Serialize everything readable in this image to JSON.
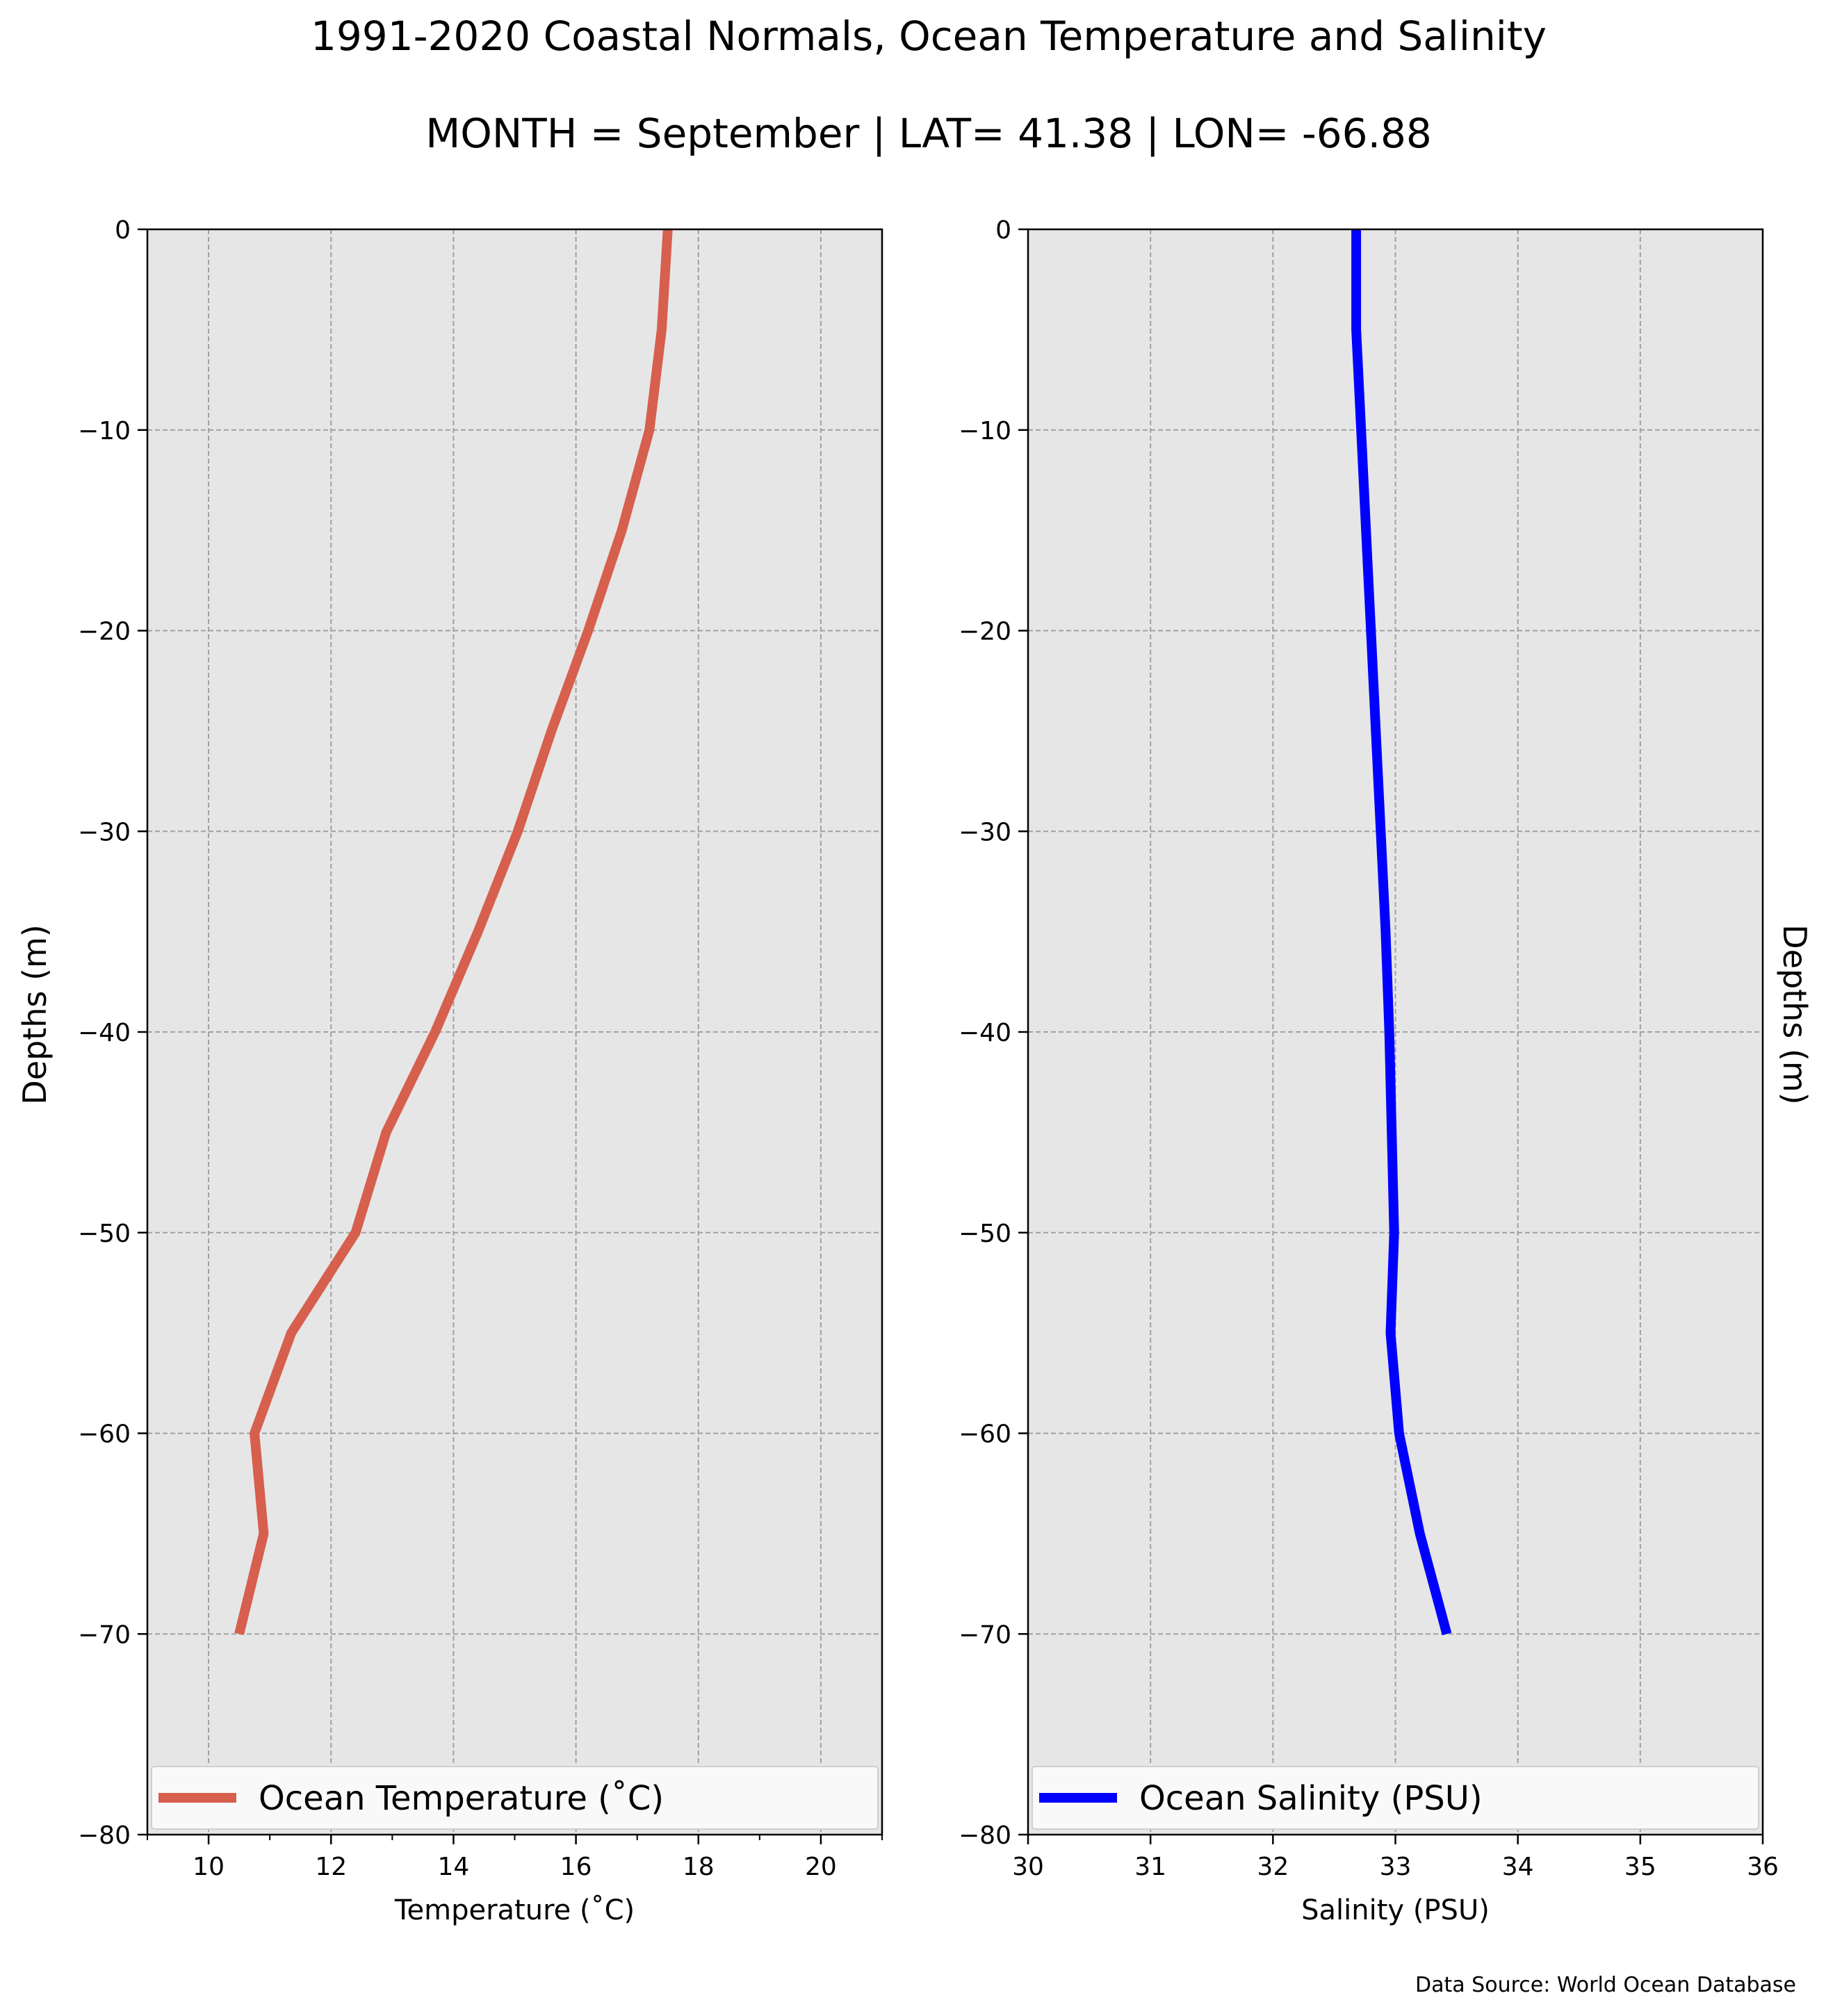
{
  "figure": {
    "title": "1991-2020 Coastal Normals, Ocean Temperature and Salinity",
    "subtitle": "MONTH = September | LAT= 41.38 | LON= -66.88",
    "source": "Data Source: World Ocean Database"
  },
  "colors": {
    "temperature_line": "#d65f4e",
    "salinity_line": "#0000ff",
    "plot_background": "#e6e6e6",
    "grid": "#a0a0a0"
  },
  "chart_data": [
    {
      "type": "line",
      "xlabel": "Temperature ($^\\circ$C)",
      "xlabel_display": "Temperature (˚C)",
      "ylabel": "Depths (m)",
      "xlim": [
        9,
        21
      ],
      "ylim": [
        -80,
        0
      ],
      "xticks": [
        10,
        12,
        14,
        16,
        18,
        20
      ],
      "xticks_minor": [
        9,
        11,
        13,
        15,
        17,
        19,
        21
      ],
      "yticks": [
        0,
        -10,
        -20,
        -30,
        -40,
        -50,
        -60,
        -70,
        -80
      ],
      "ytick_labels": [
        "0",
        "−10",
        "−20",
        "−30",
        "−40",
        "−50",
        "−60",
        "−70",
        "−80"
      ],
      "grid": true,
      "legend_position": "lower",
      "series": [
        {
          "name": "Ocean Temperature (˚C)",
          "x": [
            17.5,
            17.4,
            17.2,
            16.75,
            16.2,
            15.6,
            15.05,
            14.4,
            13.7,
            12.9,
            12.4,
            11.35,
            10.75,
            10.9,
            10.5
          ],
          "y": [
            0,
            -5,
            -10,
            -15,
            -20,
            -25,
            -30,
            -35,
            -40,
            -45,
            -50,
            -55,
            -60,
            -65,
            -70
          ]
        }
      ]
    },
    {
      "type": "line",
      "xlabel": "Salinity (PSU)",
      "ylabel": "Depths (m)",
      "xlim": [
        30,
        36
      ],
      "ylim": [
        -80,
        0
      ],
      "xticks": [
        30,
        31,
        32,
        33,
        34,
        35,
        36
      ],
      "yticks": [
        0,
        -10,
        -20,
        -30,
        -40,
        -50,
        -60,
        -70,
        -80
      ],
      "ytick_labels": [
        "0",
        "−10",
        "−20",
        "−30",
        "−40",
        "−50",
        "−60",
        "−70",
        "−80"
      ],
      "grid": true,
      "legend_position": "lower",
      "series": [
        {
          "name": "Ocean Salinity (PSU)",
          "x": [
            32.68,
            32.68,
            32.72,
            32.76,
            32.8,
            32.84,
            32.88,
            32.92,
            32.95,
            32.97,
            32.99,
            32.96,
            33.03,
            33.2,
            33.42
          ],
          "y": [
            0,
            -5,
            -10,
            -15,
            -20,
            -25,
            -30,
            -35,
            -40,
            -45,
            -50,
            -55,
            -60,
            -65,
            -70
          ]
        }
      ]
    }
  ]
}
